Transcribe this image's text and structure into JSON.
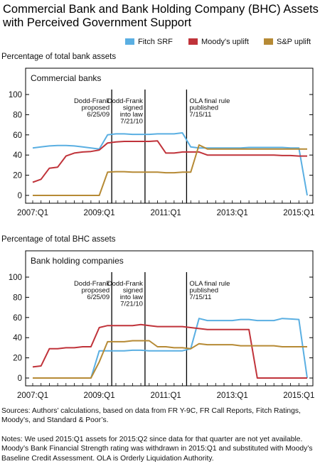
{
  "title": "Commercial Bank and Bank Holding Company (BHC) Assets with Perceived Government Support",
  "legend": [
    {
      "name": "Fitch SRF",
      "color": "#5aafe2"
    },
    {
      "name": "Moody's uplift",
      "color": "#c0333a"
    },
    {
      "name": "S&P uplift",
      "color": "#b68a35"
    }
  ],
  "chart_data": [
    {
      "type": "line",
      "ylabel": "Percentage of total bank assets",
      "panel_label": "Commercial banks",
      "ylim": [
        0,
        110
      ],
      "yticks": [
        0,
        20,
        40,
        60,
        80,
        100
      ],
      "xlim": [
        0,
        33
      ],
      "xtick_labels": [
        {
          "x": 0,
          "label": "2007:Q1"
        },
        {
          "x": 8,
          "label": "2009:Q1"
        },
        {
          "x": 16,
          "label": "2011:Q1"
        },
        {
          "x": 24,
          "label": "2013:Q1"
        },
        {
          "x": 32,
          "label": "2015:Q1"
        }
      ],
      "events": [
        {
          "x": 9.5,
          "lines": [
            "Dodd-Frank",
            "proposed",
            "6/25/09"
          ],
          "anchor": "end"
        },
        {
          "x": 13.5,
          "lines": [
            "Dodd-Frank",
            "signed",
            "into law",
            "7/21/10"
          ],
          "anchor": "end"
        },
        {
          "x": 18.5,
          "lines": [
            "OLA final rule",
            "published",
            "7/15/11"
          ],
          "anchor": "start"
        }
      ],
      "series": [
        {
          "name": "Fitch SRF",
          "color": "#5aafe2",
          "x": [
            0,
            1,
            2,
            3,
            4,
            5,
            6,
            7,
            8,
            9,
            10,
            11,
            12,
            13,
            14,
            15,
            16,
            17,
            18,
            19,
            20,
            21,
            22,
            23,
            24,
            25,
            26,
            27,
            28,
            29,
            30,
            31,
            32,
            33
          ],
          "y": [
            47,
            48,
            49,
            49.5,
            49.5,
            49,
            48,
            47,
            46,
            60,
            61,
            61,
            60.5,
            60.5,
            60.5,
            61,
            61,
            61,
            62,
            48,
            47,
            47,
            47,
            47,
            47,
            47,
            47.5,
            47.5,
            47.5,
            47.5,
            47.5,
            47,
            47,
            0
          ]
        },
        {
          "name": "Moody's uplift",
          "color": "#c0333a",
          "x": [
            0,
            1,
            2,
            3,
            4,
            5,
            6,
            7,
            8,
            9,
            10,
            11,
            12,
            13,
            14,
            15,
            16,
            17,
            18,
            19,
            20,
            21,
            22,
            23,
            24,
            25,
            26,
            27,
            28,
            29,
            30,
            31,
            32,
            33
          ],
          "y": [
            13,
            16,
            27,
            28,
            39,
            42,
            43,
            43.5,
            45,
            52,
            53,
            53.5,
            53.5,
            53.5,
            53.5,
            54,
            42,
            42,
            43,
            43,
            43,
            40,
            40,
            40,
            40,
            40,
            40,
            40,
            40,
            40,
            39.5,
            39.5,
            39,
            39
          ]
        },
        {
          "name": "S&P uplift",
          "color": "#b68a35",
          "x": [
            0,
            1,
            2,
            3,
            4,
            5,
            6,
            7,
            8,
            9,
            10,
            11,
            12,
            13,
            14,
            15,
            16,
            17,
            18,
            19,
            20,
            21,
            22,
            23,
            24,
            25,
            26,
            27,
            28,
            29,
            30,
            31,
            32,
            33
          ],
          "y": [
            0,
            0,
            0,
            0,
            0,
            0,
            0,
            0,
            0,
            23,
            23.5,
            23.5,
            23,
            23,
            23,
            23,
            22.5,
            22.5,
            23,
            23,
            50,
            46,
            46,
            46,
            46,
            46,
            46,
            46,
            46,
            46,
            46,
            46,
            46,
            46
          ]
        }
      ]
    },
    {
      "type": "line",
      "ylabel": "Percentage of total BHC assets",
      "panel_label": "Bank holding companies",
      "ylim": [
        0,
        110
      ],
      "yticks": [
        0,
        20,
        40,
        60,
        80,
        100
      ],
      "xlim": [
        0,
        33
      ],
      "xtick_labels": [
        {
          "x": 0,
          "label": "2007:Q1"
        },
        {
          "x": 8,
          "label": "2009:Q1"
        },
        {
          "x": 16,
          "label": "2011:Q1"
        },
        {
          "x": 24,
          "label": "2013:Q1"
        },
        {
          "x": 32,
          "label": "2015:Q1"
        }
      ],
      "events": [
        {
          "x": 9.5,
          "lines": [
            "Dodd-Frank",
            "proposed",
            "6/25/09"
          ],
          "anchor": "end"
        },
        {
          "x": 13.5,
          "lines": [
            "Dodd-Frank",
            "signed",
            "into law",
            "7/21/10"
          ],
          "anchor": "end"
        },
        {
          "x": 18.5,
          "lines": [
            "OLA final rule",
            "published",
            "7/15/11"
          ],
          "anchor": "start"
        }
      ],
      "series": [
        {
          "name": "Fitch SRF",
          "color": "#5aafe2",
          "x": [
            0,
            1,
            2,
            3,
            4,
            5,
            6,
            7,
            8,
            9,
            10,
            11,
            12,
            13,
            14,
            15,
            16,
            17,
            18,
            19,
            20,
            21,
            22,
            23,
            24,
            25,
            26,
            27,
            28,
            29,
            30,
            31,
            32,
            33
          ],
          "y": [
            0,
            0,
            0,
            0,
            0,
            0,
            0,
            0,
            27,
            27,
            27,
            27,
            27.5,
            27.5,
            27,
            27,
            27,
            27,
            27,
            29,
            59,
            57,
            57,
            57,
            57,
            58,
            58,
            57,
            57,
            57,
            59,
            58.5,
            58,
            0
          ]
        },
        {
          "name": "Moody's uplift",
          "color": "#c0333a",
          "x": [
            0,
            1,
            2,
            3,
            4,
            5,
            6,
            7,
            8,
            9,
            10,
            11,
            12,
            13,
            14,
            15,
            16,
            17,
            18,
            19,
            20,
            21,
            22,
            23,
            24,
            25,
            26,
            27,
            28,
            29,
            30,
            31,
            32,
            33
          ],
          "y": [
            11,
            12,
            29,
            29,
            30,
            30,
            31,
            31,
            50,
            52,
            52,
            52,
            52,
            53,
            52,
            51,
            51,
            51,
            51,
            50,
            49,
            48,
            48,
            48,
            48,
            48,
            48,
            0,
            0,
            0,
            0,
            0,
            0,
            0
          ]
        },
        {
          "name": "S&P uplift",
          "color": "#b68a35",
          "x": [
            0,
            1,
            2,
            3,
            4,
            5,
            6,
            7,
            8,
            9,
            10,
            11,
            12,
            13,
            14,
            15,
            16,
            17,
            18,
            19,
            20,
            21,
            22,
            23,
            24,
            25,
            26,
            27,
            28,
            29,
            30,
            31,
            32,
            33
          ],
          "y": [
            0,
            0,
            0,
            0,
            0,
            0,
            0,
            0,
            16,
            36,
            36,
            36,
            37,
            37,
            37,
            31,
            31,
            30,
            30,
            29,
            34,
            33,
            33,
            33,
            33,
            32,
            32,
            32,
            32,
            32,
            31,
            31,
            31,
            31
          ]
        }
      ]
    }
  ],
  "sources": "Sources: Authors’ calculations, based on data from FR Y-9C, FR Call Reports, Fitch Ratings, Moody’s, and Standard & Poor’s.",
  "notes": "Notes: We used 2015:Q1 assets for 2015:Q2 since data for that quarter are not yet available. Moody’s Bank Financial Strength rating was withdrawn in 2015:Q1 and substituted with Moody’s Baseline Credit Assessment. OLA is Orderly Liquidation Authority."
}
